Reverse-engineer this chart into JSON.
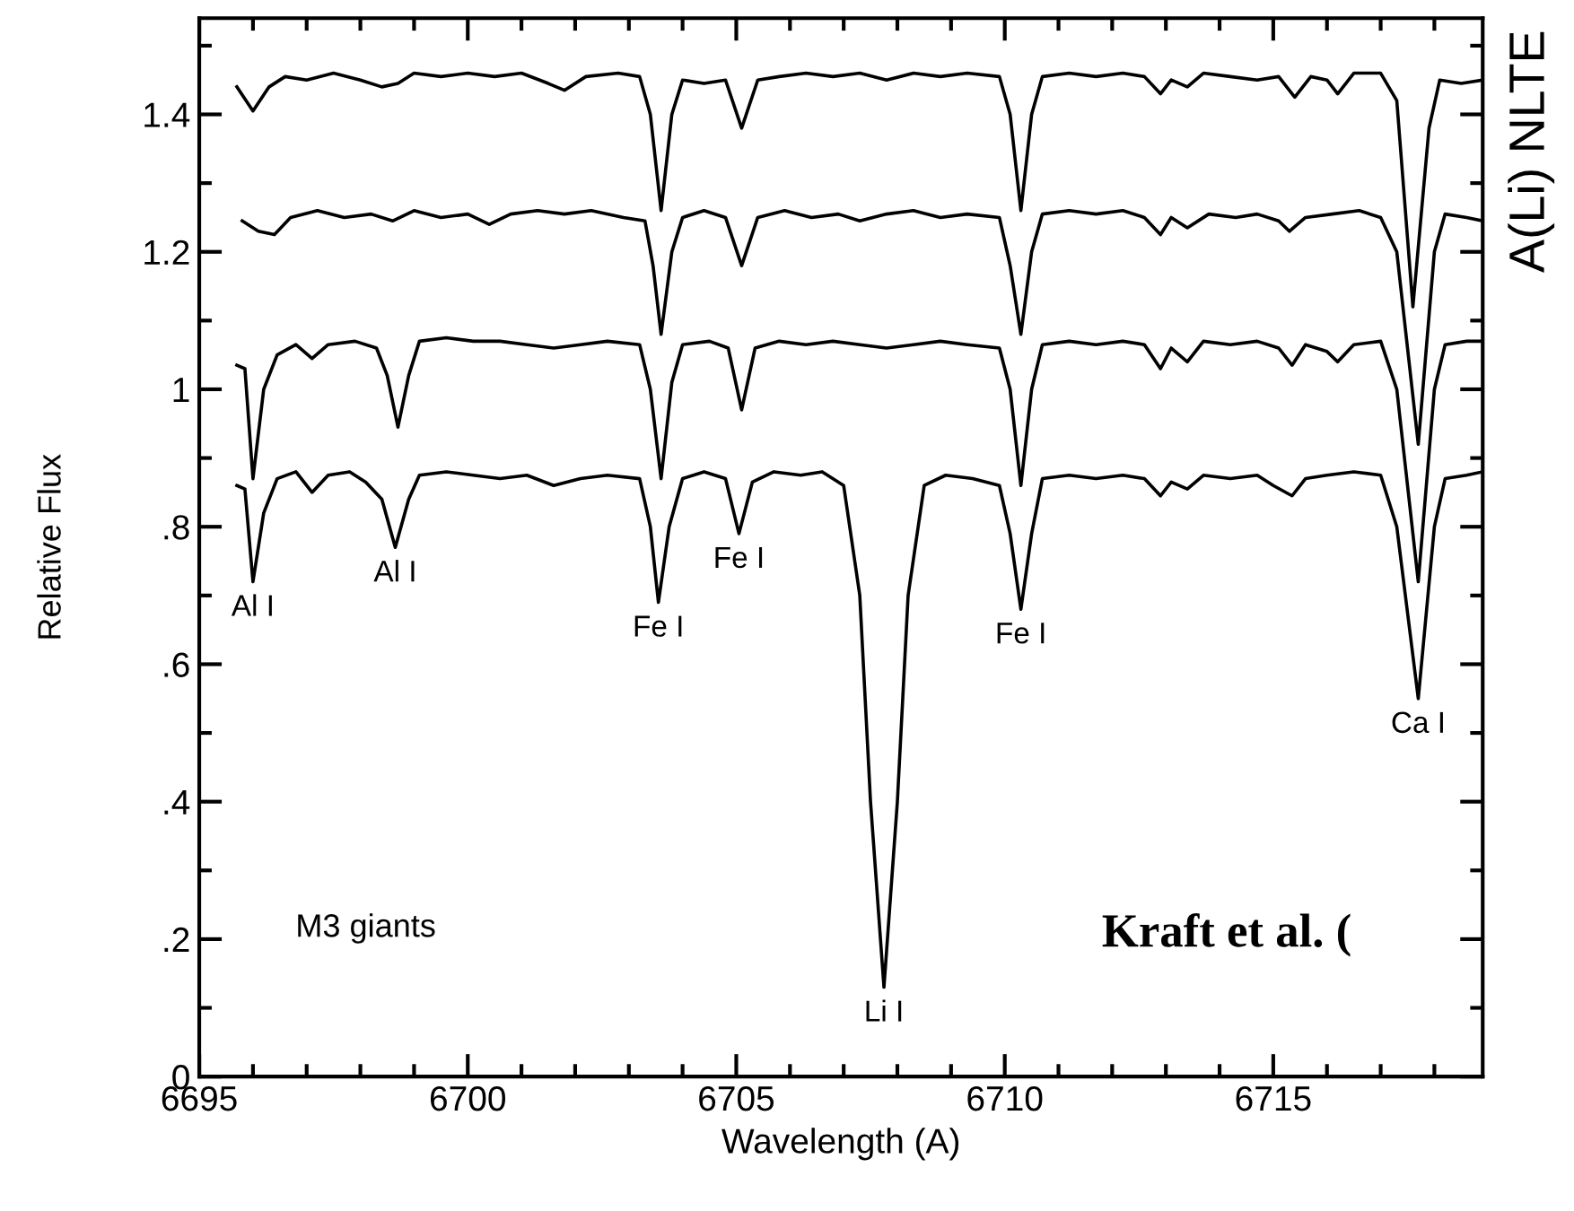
{
  "chart_data": {
    "type": "line",
    "xlabel": "Wavelength (A)",
    "ylabel": "Relative Flux",
    "xlim": [
      6695,
      6718.9
    ],
    "ylim": [
      0,
      1.54
    ],
    "xticks": [
      6695,
      {
        "value": 6696,
        "label": null
      },
      {
        "value": 6697,
        "label": null
      },
      {
        "value": 6698,
        "label": null
      },
      {
        "value": 6699,
        "label": null
      },
      6700,
      {
        "value": 6701,
        "label": null
      },
      {
        "value": 6702,
        "label": null
      },
      {
        "value": 6703,
        "label": null
      },
      {
        "value": 6704,
        "label": null
      },
      6705,
      {
        "value": 6706,
        "label": null
      },
      {
        "value": 6707,
        "label": null
      },
      {
        "value": 6708,
        "label": null
      },
      {
        "value": 6709,
        "label": null
      },
      6710,
      {
        "value": 6711,
        "label": null
      },
      {
        "value": 6712,
        "label": null
      },
      {
        "value": 6713,
        "label": null
      },
      {
        "value": 6714,
        "label": null
      },
      6715,
      {
        "value": 6716,
        "label": null
      },
      {
        "value": 6717,
        "label": null
      },
      {
        "value": 6718,
        "label": null
      }
    ],
    "yticks": [
      0,
      {
        "value": 0.1,
        "label": null
      },
      {
        "value": 0.2,
        "label": ".2"
      },
      {
        "value": 0.3,
        "label": null
      },
      {
        "value": 0.4,
        "label": ".4"
      },
      {
        "value": 0.5,
        "label": null
      },
      {
        "value": 0.6,
        "label": ".6"
      },
      {
        "value": 0.7,
        "label": null
      },
      {
        "value": 0.8,
        "label": ".8"
      },
      {
        "value": 0.9,
        "label": null
      },
      1,
      {
        "value": 1.1,
        "label": null
      },
      1.2,
      {
        "value": 1.3,
        "label": null
      },
      1.4,
      {
        "value": 1.5,
        "label": null
      }
    ],
    "grid": false,
    "marker": "none",
    "line_style": "solid",
    "series": [
      {
        "color": "#000000",
        "x": [
          6695.7,
          6696.0,
          6696.3,
          6696.6,
          6697.0,
          6697.5,
          6698.0,
          6698.4,
          6698.7,
          6699.0,
          6699.5,
          6700.0,
          6700.5,
          6701.0,
          6701.5,
          6701.8,
          6702.2,
          6702.8,
          6703.2,
          6703.4,
          6703.6,
          6703.8,
          6704.0,
          6704.4,
          6704.8,
          6705.1,
          6705.4,
          6705.8,
          6706.3,
          6706.8,
          6707.3,
          6707.8,
          6708.3,
          6708.8,
          6709.3,
          6709.9,
          6710.1,
          6710.3,
          6710.5,
          6710.7,
          6711.2,
          6711.7,
          6712.2,
          6712.6,
          6712.9,
          6713.1,
          6713.4,
          6713.7,
          6714.2,
          6714.7,
          6715.1,
          6715.4,
          6715.7,
          6716.0,
          6716.2,
          6716.5,
          6717.0,
          6717.3,
          6717.6,
          6717.9,
          6718.1,
          6718.5,
          6718.9
        ],
        "values": [
          1.44,
          1.405,
          1.44,
          1.455,
          1.45,
          1.46,
          1.45,
          1.44,
          1.445,
          1.46,
          1.455,
          1.46,
          1.455,
          1.46,
          1.445,
          1.435,
          1.455,
          1.46,
          1.455,
          1.4,
          1.26,
          1.4,
          1.45,
          1.445,
          1.45,
          1.38,
          1.45,
          1.455,
          1.46,
          1.455,
          1.46,
          1.45,
          1.46,
          1.455,
          1.46,
          1.455,
          1.4,
          1.26,
          1.4,
          1.455,
          1.46,
          1.455,
          1.46,
          1.455,
          1.43,
          1.45,
          1.44,
          1.46,
          1.455,
          1.45,
          1.455,
          1.425,
          1.455,
          1.45,
          1.43,
          1.46,
          1.46,
          1.42,
          1.12,
          1.38,
          1.45,
          1.445,
          1.45
        ]
      },
      {
        "color": "#000000",
        "x": [
          6695.8,
          6696.1,
          6696.4,
          6696.7,
          6697.2,
          6697.7,
          6698.2,
          6698.6,
          6699.0,
          6699.5,
          6700.0,
          6700.4,
          6700.8,
          6701.3,
          6701.8,
          6702.3,
          6702.9,
          6703.3,
          6703.45,
          6703.6,
          6703.8,
          6704.0,
          6704.4,
          6704.8,
          6705.1,
          6705.4,
          6705.9,
          6706.4,
          6706.9,
          6707.3,
          6707.8,
          6708.3,
          6708.8,
          6709.3,
          6709.9,
          6710.1,
          6710.3,
          6710.5,
          6710.7,
          6711.2,
          6711.7,
          6712.2,
          6712.6,
          6712.9,
          6713.1,
          6713.4,
          6713.8,
          6714.3,
          6714.7,
          6715.1,
          6715.3,
          6715.6,
          6716.1,
          6716.6,
          6717.0,
          6717.3,
          6717.7,
          6718.0,
          6718.2,
          6718.6,
          6718.9
        ],
        "values": [
          1.245,
          1.23,
          1.225,
          1.25,
          1.26,
          1.25,
          1.255,
          1.245,
          1.26,
          1.25,
          1.255,
          1.24,
          1.255,
          1.26,
          1.255,
          1.26,
          1.25,
          1.245,
          1.18,
          1.08,
          1.2,
          1.25,
          1.26,
          1.25,
          1.18,
          1.25,
          1.26,
          1.25,
          1.255,
          1.245,
          1.255,
          1.26,
          1.25,
          1.255,
          1.25,
          1.18,
          1.08,
          1.2,
          1.255,
          1.26,
          1.255,
          1.26,
          1.25,
          1.225,
          1.25,
          1.235,
          1.255,
          1.25,
          1.255,
          1.245,
          1.23,
          1.25,
          1.255,
          1.26,
          1.25,
          1.2,
          0.92,
          1.2,
          1.255,
          1.25,
          1.245
        ]
      },
      {
        "color": "#000000",
        "x": [
          6695.7,
          6695.85,
          6696.0,
          6696.2,
          6696.45,
          6696.8,
          6697.1,
          6697.4,
          6697.9,
          6698.3,
          6698.5,
          6698.7,
          6698.9,
          6699.1,
          6699.6,
          6700.1,
          6700.6,
          6701.1,
          6701.6,
          6702.1,
          6702.6,
          6703.2,
          6703.4,
          6703.6,
          6703.8,
          6704.0,
          6704.5,
          6704.85,
          6705.1,
          6705.35,
          6705.8,
          6706.3,
          6706.8,
          6707.3,
          6707.8,
          6708.3,
          6708.8,
          6709.3,
          6709.9,
          6710.1,
          6710.3,
          6710.5,
          6710.7,
          6711.2,
          6711.7,
          6712.2,
          6712.6,
          6712.9,
          6713.1,
          6713.4,
          6713.7,
          6714.2,
          6714.7,
          6715.1,
          6715.35,
          6715.6,
          6716.0,
          6716.2,
          6716.5,
          6717.0,
          6717.3,
          6717.7,
          6718.0,
          6718.2,
          6718.6,
          6718.9
        ],
        "values": [
          1.035,
          1.03,
          0.87,
          1.0,
          1.05,
          1.065,
          1.045,
          1.065,
          1.07,
          1.06,
          1.02,
          0.945,
          1.02,
          1.07,
          1.075,
          1.07,
          1.07,
          1.065,
          1.06,
          1.065,
          1.07,
          1.065,
          1.0,
          0.87,
          1.01,
          1.065,
          1.07,
          1.06,
          0.97,
          1.06,
          1.07,
          1.065,
          1.07,
          1.065,
          1.06,
          1.065,
          1.07,
          1.065,
          1.06,
          1.0,
          0.86,
          1.0,
          1.065,
          1.07,
          1.065,
          1.07,
          1.065,
          1.03,
          1.06,
          1.04,
          1.07,
          1.065,
          1.07,
          1.06,
          1.035,
          1.065,
          1.055,
          1.04,
          1.065,
          1.07,
          1.0,
          0.72,
          1.0,
          1.065,
          1.07,
          1.07
        ]
      },
      {
        "color": "#000000",
        "x": [
          6695.7,
          6695.85,
          6696.0,
          6696.2,
          6696.45,
          6696.8,
          6697.1,
          6697.4,
          6697.8,
          6698.1,
          6698.4,
          6698.65,
          6698.9,
          6699.1,
          6699.6,
          6700.1,
          6700.6,
          6701.1,
          6701.6,
          6702.1,
          6702.6,
          6703.2,
          6703.4,
          6703.55,
          6703.75,
          6704.0,
          6704.4,
          6704.8,
          6705.05,
          6705.3,
          6705.7,
          6706.2,
          6706.6,
          6707.0,
          6707.3,
          6707.5,
          6707.75,
          6708.0,
          6708.2,
          6708.5,
          6708.9,
          6709.4,
          6709.9,
          6710.1,
          6710.3,
          6710.5,
          6710.7,
          6711.2,
          6711.7,
          6712.2,
          6712.6,
          6712.9,
          6713.1,
          6713.4,
          6713.7,
          6714.2,
          6714.7,
          6715.0,
          6715.35,
          6715.6,
          6716.0,
          6716.5,
          6717.0,
          6717.3,
          6717.7,
          6718.0,
          6718.2,
          6718.6,
          6718.9
        ],
        "values": [
          0.86,
          0.855,
          0.72,
          0.82,
          0.87,
          0.88,
          0.85,
          0.875,
          0.88,
          0.865,
          0.84,
          0.77,
          0.84,
          0.875,
          0.88,
          0.875,
          0.87,
          0.875,
          0.86,
          0.87,
          0.875,
          0.87,
          0.8,
          0.69,
          0.8,
          0.87,
          0.88,
          0.87,
          0.79,
          0.865,
          0.88,
          0.875,
          0.88,
          0.86,
          0.7,
          0.4,
          0.13,
          0.4,
          0.7,
          0.86,
          0.875,
          0.87,
          0.86,
          0.79,
          0.68,
          0.79,
          0.87,
          0.875,
          0.87,
          0.875,
          0.87,
          0.845,
          0.865,
          0.855,
          0.875,
          0.87,
          0.875,
          0.86,
          0.845,
          0.87,
          0.875,
          0.88,
          0.875,
          0.8,
          0.55,
          0.8,
          0.87,
          0.875,
          0.88
        ]
      }
    ],
    "annotations": [
      {
        "text": "Al I",
        "x": 6696.0,
        "y": 0.72
      },
      {
        "text": "Al I",
        "x": 6698.65,
        "y": 0.77
      },
      {
        "text": "Fe I",
        "x": 6703.55,
        "y": 0.69
      },
      {
        "text": "Fe I",
        "x": 6705.05,
        "y": 0.79
      },
      {
        "text": "Li I",
        "x": 6707.75,
        "y": 0.13
      },
      {
        "text": "Fe I",
        "x": 6710.3,
        "y": 0.68
      },
      {
        "text": "Ca I",
        "x": 6717.7,
        "y": 0.55
      },
      "M3 giants",
      "Kraft et al. (",
      "A(Li) NLTE"
    ]
  }
}
